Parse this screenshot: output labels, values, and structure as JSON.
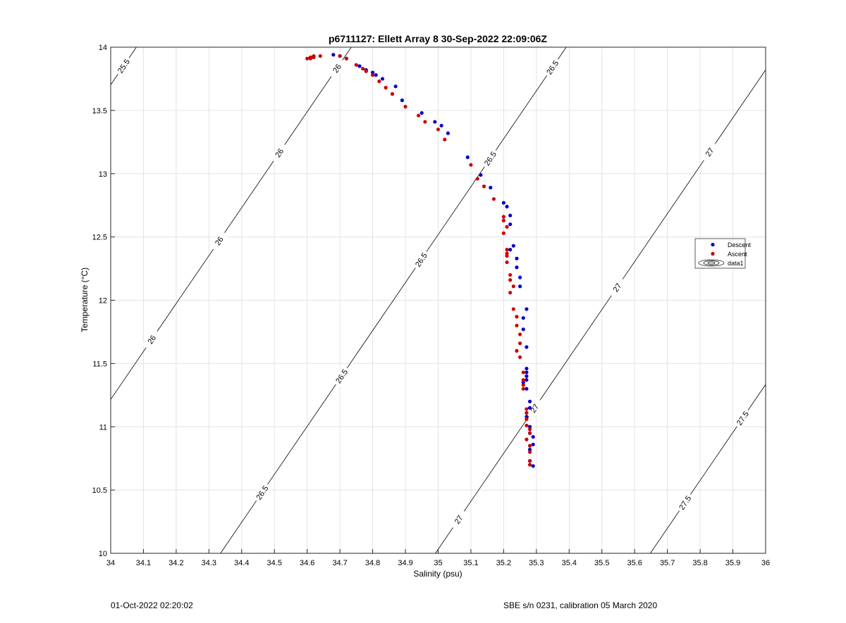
{
  "chart_data": {
    "type": "scatter",
    "title": "p6711127: Ellett Array 8 30-Sep-2022 22:09:06Z",
    "xlabel": "Salinity (psu)",
    "ylabel": "Temperature (°C)",
    "xlim": [
      34,
      36
    ],
    "ylim": [
      10,
      14
    ],
    "xticks": [
      "34",
      "34.1",
      "34.2",
      "34.3",
      "34.4",
      "34.5",
      "34.6",
      "34.7",
      "34.8",
      "34.9",
      "35",
      "35.1",
      "35.2",
      "35.3",
      "35.4",
      "35.5",
      "35.6",
      "35.7",
      "35.8",
      "35.9",
      "36"
    ],
    "yticks": [
      "10",
      "10.5",
      "11",
      "11.5",
      "12",
      "12.5",
      "13",
      "13.5",
      "14"
    ],
    "grid": true,
    "legend_position": "right",
    "legend": [
      "Descent",
      "Ascent",
      "data1"
    ],
    "colors": {
      "descent": "#0000cc",
      "ascent": "#cc0000",
      "contour": "#000000",
      "grid": "#e3e3e3"
    },
    "series": [
      {
        "name": "Descent",
        "points": [
          [
            34.68,
            13.94
          ],
          [
            34.7,
            13.93
          ],
          [
            34.72,
            13.91
          ],
          [
            34.76,
            13.85
          ],
          [
            34.78,
            13.82
          ],
          [
            34.8,
            13.8
          ],
          [
            34.81,
            13.78
          ],
          [
            34.83,
            13.75
          ],
          [
            34.87,
            13.69
          ],
          [
            34.89,
            13.58
          ],
          [
            34.95,
            13.48
          ],
          [
            34.99,
            13.41
          ],
          [
            35.01,
            13.38
          ],
          [
            35.03,
            13.32
          ],
          [
            35.09,
            13.13
          ],
          [
            35.13,
            12.99
          ],
          [
            35.16,
            12.89
          ],
          [
            35.2,
            12.77
          ],
          [
            35.21,
            12.74
          ],
          [
            35.22,
            12.67
          ],
          [
            35.22,
            12.6
          ],
          [
            35.23,
            12.43
          ],
          [
            35.22,
            12.4
          ],
          [
            35.24,
            12.33
          ],
          [
            35.24,
            12.26
          ],
          [
            35.25,
            12.18
          ],
          [
            35.25,
            12.11
          ],
          [
            35.27,
            11.93
          ],
          [
            35.26,
            11.86
          ],
          [
            35.26,
            11.77
          ],
          [
            35.27,
            11.63
          ],
          [
            35.27,
            11.46
          ],
          [
            35.27,
            11.43
          ],
          [
            35.27,
            11.4
          ],
          [
            35.27,
            11.37
          ],
          [
            35.26,
            11.35
          ],
          [
            35.27,
            11.3
          ],
          [
            35.28,
            11.2
          ],
          [
            35.28,
            11.15
          ],
          [
            35.27,
            11.08
          ],
          [
            35.28,
            11.0
          ],
          [
            35.28,
            10.95
          ],
          [
            35.29,
            10.92
          ],
          [
            35.29,
            10.86
          ],
          [
            35.28,
            10.82
          ],
          [
            35.28,
            10.73
          ],
          [
            35.29,
            10.69
          ]
        ]
      },
      {
        "name": "Ascent",
        "points": [
          [
            34.6,
            13.91
          ],
          [
            34.61,
            13.91
          ],
          [
            34.61,
            13.92
          ],
          [
            34.62,
            13.92
          ],
          [
            34.62,
            13.93
          ],
          [
            34.64,
            13.93
          ],
          [
            34.7,
            13.93
          ],
          [
            34.72,
            13.91
          ],
          [
            34.75,
            13.86
          ],
          [
            34.77,
            13.83
          ],
          [
            34.78,
            13.81
          ],
          [
            34.8,
            13.78
          ],
          [
            34.82,
            13.73
          ],
          [
            34.84,
            13.68
          ],
          [
            34.86,
            13.63
          ],
          [
            34.9,
            13.53
          ],
          [
            34.94,
            13.46
          ],
          [
            34.96,
            13.41
          ],
          [
            35.0,
            13.35
          ],
          [
            35.02,
            13.27
          ],
          [
            35.1,
            13.07
          ],
          [
            35.12,
            12.96
          ],
          [
            35.14,
            12.9
          ],
          [
            35.17,
            12.8
          ],
          [
            35.2,
            12.66
          ],
          [
            35.2,
            12.63
          ],
          [
            35.21,
            12.58
          ],
          [
            35.2,
            12.53
          ],
          [
            35.21,
            12.4
          ],
          [
            35.21,
            12.37
          ],
          [
            35.21,
            12.35
          ],
          [
            35.21,
            12.3
          ],
          [
            35.22,
            12.2
          ],
          [
            35.22,
            12.16
          ],
          [
            35.23,
            12.11
          ],
          [
            35.22,
            12.06
          ],
          [
            35.23,
            11.93
          ],
          [
            35.24,
            11.87
          ],
          [
            35.24,
            11.8
          ],
          [
            35.25,
            11.73
          ],
          [
            35.25,
            11.66
          ],
          [
            35.24,
            11.6
          ],
          [
            35.25,
            11.55
          ],
          [
            35.26,
            11.43
          ],
          [
            35.26,
            11.37
          ],
          [
            35.26,
            11.33
          ],
          [
            35.26,
            11.3
          ],
          [
            35.27,
            11.14
          ],
          [
            35.27,
            11.11
          ],
          [
            35.27,
            11.06
          ],
          [
            35.27,
            11.01
          ],
          [
            35.28,
            10.98
          ],
          [
            35.28,
            10.95
          ],
          [
            35.27,
            10.9
          ],
          [
            35.28,
            10.85
          ],
          [
            35.28,
            10.8
          ],
          [
            35.28,
            10.73
          ],
          [
            35.28,
            10.7
          ]
        ]
      }
    ],
    "contours": [
      {
        "level": 25.5,
        "labels": [
          "25.5"
        ]
      },
      {
        "level": 26,
        "labels": [
          "26",
          "26",
          "26",
          "26"
        ]
      },
      {
        "level": 26.5,
        "labels": [
          "26.5",
          "26.5",
          "26.5",
          "26.5",
          "26.5"
        ]
      },
      {
        "level": 27,
        "labels": [
          "27",
          "27",
          "27",
          "27"
        ]
      },
      {
        "level": 27.5,
        "labels": [
          "27.5",
          "27.5"
        ]
      }
    ]
  },
  "footer": {
    "left": "01-Oct-2022 02:20:02",
    "right": "SBE s/n 0231, calibration 05 March 2020"
  }
}
